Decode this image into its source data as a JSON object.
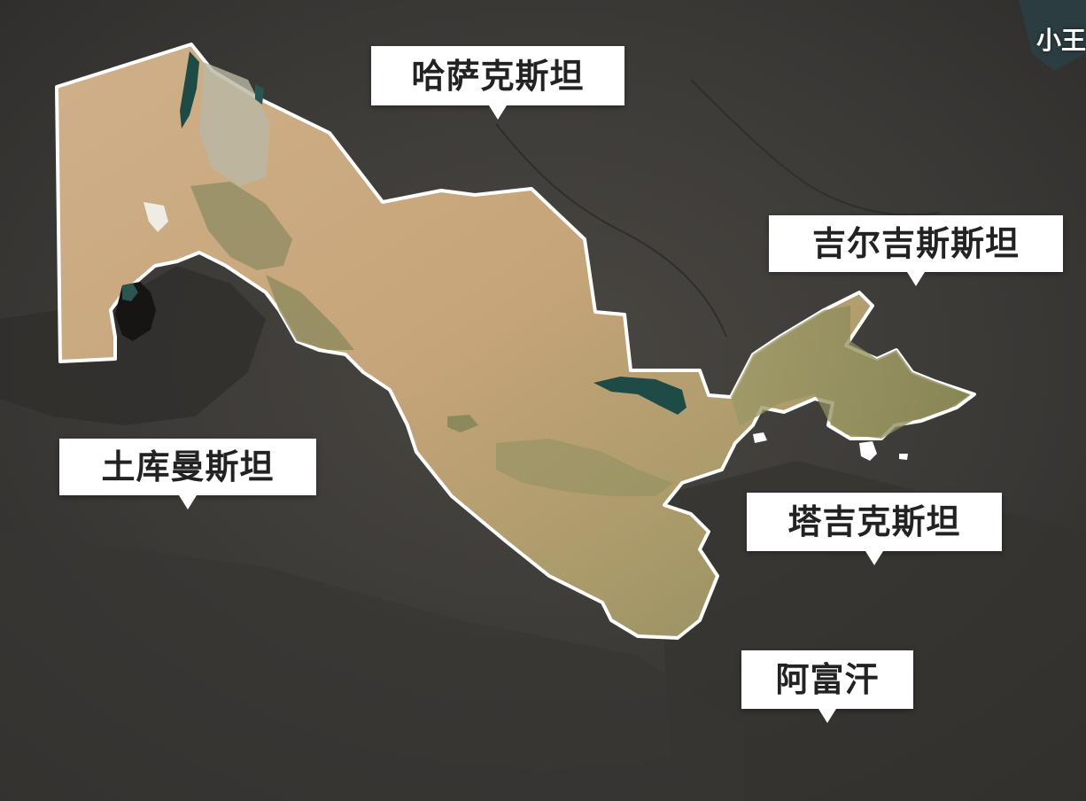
{
  "map": {
    "highlighted_country": "uzbekistan",
    "labels": {
      "kazakhstan": "哈萨克斯坦",
      "kyrgyzstan": "吉尔吉斯斯坦",
      "turkmenistan": "土库曼斯坦",
      "tajikistan": "塔吉克斯坦",
      "afghanistan": "阿富汗"
    },
    "watermark": "小王"
  },
  "colors": {
    "background_terrain": "#3a3835",
    "highlight_fill": "#c9a87a",
    "border": "#ffffff",
    "label_background": "#ffffff",
    "label_text": "#222222",
    "water": "#1f4b46"
  }
}
